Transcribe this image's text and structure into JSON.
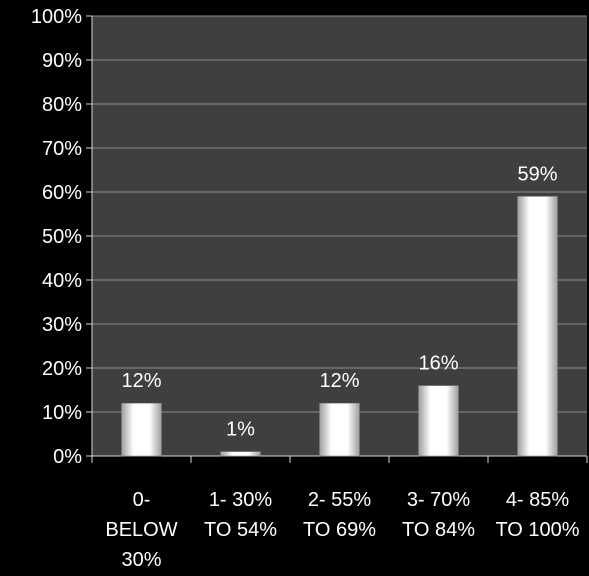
{
  "chart_data": {
    "type": "bar",
    "title": "",
    "xlabel": "",
    "ylabel": "",
    "categories": [
      [
        "0-",
        "BELOW",
        "30%"
      ],
      [
        "1- 30%",
        "TO 54%"
      ],
      [
        "2- 55%",
        "TO 69%"
      ],
      [
        "3- 70%",
        "TO 84%"
      ],
      [
        "4- 85%",
        "TO 100%"
      ]
    ],
    "values": [
      12,
      1,
      12,
      16,
      59
    ],
    "data_labels": [
      "12%",
      "1%",
      "12%",
      "16%",
      "59%"
    ],
    "ylim": [
      0,
      100
    ],
    "y_ticks": [
      0,
      10,
      20,
      30,
      40,
      50,
      60,
      70,
      80,
      90,
      100
    ],
    "y_tick_labels": [
      "0%",
      "10%",
      "20%",
      "30%",
      "40%",
      "50%",
      "60%",
      "70%",
      "80%",
      "90%",
      "100%"
    ],
    "grid": true,
    "legend": "none",
    "colors": {
      "background": "#000000",
      "plot_area": "#3f3f3f",
      "gridline": "#8c8c8c",
      "axis": "#d9d9d9",
      "bar_fill_edge": "#bdbdbd",
      "bar_fill_center": "#ffffff",
      "text": "#ffffff"
    }
  }
}
